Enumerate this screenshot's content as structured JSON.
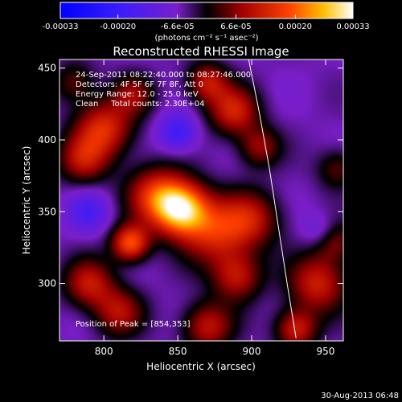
{
  "chart_data": {
    "type": "heatmap",
    "title": "Reconstructed RHESSI Image",
    "xlabel": "Heliocentric X (arcsec)",
    "ylabel": "Heliocentric Y (arcsec)",
    "xlim": [
      770,
      962
    ],
    "ylim": [
      260,
      456
    ],
    "x_ticks": [
      {
        "value": 800,
        "label": "800"
      },
      {
        "value": 850,
        "label": "850"
      },
      {
        "value": 900,
        "label": "900"
      },
      {
        "value": 950,
        "label": "950"
      }
    ],
    "y_ticks": [
      {
        "value": 300,
        "label": "300"
      },
      {
        "value": 350,
        "label": "350"
      },
      {
        "value": 400,
        "label": "400"
      },
      {
        "value": 450,
        "label": "450"
      }
    ],
    "colorbar": {
      "range": [
        -0.00033,
        0.00033
      ],
      "ticks": [
        {
          "value": -0.00033,
          "label": "-0.00033"
        },
        {
          "value": -0.0002,
          "label": "-0.00020"
        },
        {
          "value": -6.6e-05,
          "label": "-6.6e-05"
        },
        {
          "value": 6.6e-05,
          "label": "6.6e-05"
        },
        {
          "value": 0.0002,
          "label": "0.00020"
        },
        {
          "value": 0.00033,
          "label": "0.00033"
        }
      ],
      "units": "(photons cm⁻² s⁻¹ asec⁻²)"
    },
    "annotations": [
      "24-Sep-2011 08:22:40.000 to 08:27:46.000",
      "Detectors: 4F 5F 6F 7F 8F, Att 0",
      "Energy Range: 12.0 - 25.0 keV",
      "Clean     Total counts: 2.30E+04"
    ],
    "peak_label": "Position of Peak = [854,353]",
    "peak": {
      "x": 854,
      "y": 353
    },
    "limb_curve": [
      [
        898,
        456
      ],
      [
        905,
        420
      ],
      [
        912,
        380
      ],
      [
        918,
        340
      ],
      [
        924,
        300
      ],
      [
        930,
        262
      ]
    ],
    "sources": [
      {
        "x": 852,
        "y": 352,
        "amp": 1.0,
        "sigma": 13
      },
      {
        "x": 835,
        "y": 362,
        "amp": 0.55,
        "sigma": 14
      },
      {
        "x": 875,
        "y": 336,
        "amp": 0.55,
        "sigma": 16
      },
      {
        "x": 818,
        "y": 328,
        "amp": 0.75,
        "sigma": 9
      },
      {
        "x": 800,
        "y": 408,
        "amp": 0.6,
        "sigma": 14
      },
      {
        "x": 786,
        "y": 386,
        "amp": 0.45,
        "sigma": 12
      },
      {
        "x": 888,
        "y": 420,
        "amp": 0.55,
        "sigma": 12
      },
      {
        "x": 870,
        "y": 440,
        "amp": 0.5,
        "sigma": 10
      },
      {
        "x": 905,
        "y": 395,
        "amp": 0.4,
        "sigma": 10
      },
      {
        "x": 820,
        "y": 432,
        "amp": 0.35,
        "sigma": 10
      },
      {
        "x": 900,
        "y": 345,
        "amp": 0.45,
        "sigma": 14
      },
      {
        "x": 890,
        "y": 305,
        "amp": 0.5,
        "sigma": 12
      },
      {
        "x": 945,
        "y": 300,
        "amp": 0.55,
        "sigma": 14
      },
      {
        "x": 955,
        "y": 330,
        "amp": 0.45,
        "sigma": 10
      },
      {
        "x": 870,
        "y": 270,
        "amp": 0.5,
        "sigma": 12
      },
      {
        "x": 930,
        "y": 268,
        "amp": 0.55,
        "sigma": 10
      },
      {
        "x": 810,
        "y": 280,
        "amp": 0.45,
        "sigma": 12
      },
      {
        "x": 790,
        "y": 300,
        "amp": 0.5,
        "sigma": 12
      },
      {
        "x": 780,
        "y": 440,
        "amp": 0.3,
        "sigma": 10
      },
      {
        "x": 850,
        "y": 405,
        "amp": -0.4,
        "sigma": 9
      },
      {
        "x": 948,
        "y": 335,
        "amp": -0.3,
        "sigma": 9
      },
      {
        "x": 958,
        "y": 380,
        "amp": 0.3,
        "sigma": 10
      },
      {
        "x": 790,
        "y": 350,
        "amp": -0.3,
        "sigma": 10
      }
    ]
  },
  "footer": {
    "timestamp": "30-Aug-2013 06:48"
  }
}
